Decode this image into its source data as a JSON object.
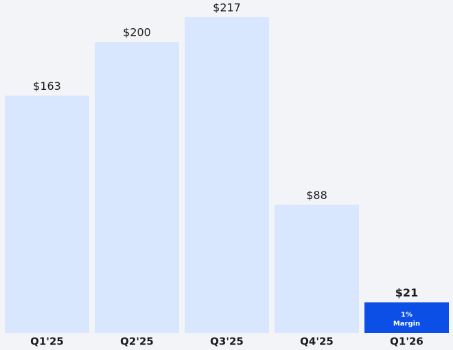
{
  "chart_data": {
    "type": "bar",
    "categories": [
      "Q1'25",
      "Q2'25",
      "Q3'25",
      "Q4'25",
      "Q1'26"
    ],
    "values": [
      163,
      200,
      217,
      88,
      21
    ],
    "value_labels": [
      "$163",
      "$200",
      "$217",
      "$88",
      "$21"
    ],
    "colors": [
      "#d8e7fe",
      "#d8e7fe",
      "#d8e7fe",
      "#d8e7fe",
      "#0b4fe6"
    ],
    "highlight": 4,
    "annotation": [
      "1%",
      "Margin"
    ]
  }
}
